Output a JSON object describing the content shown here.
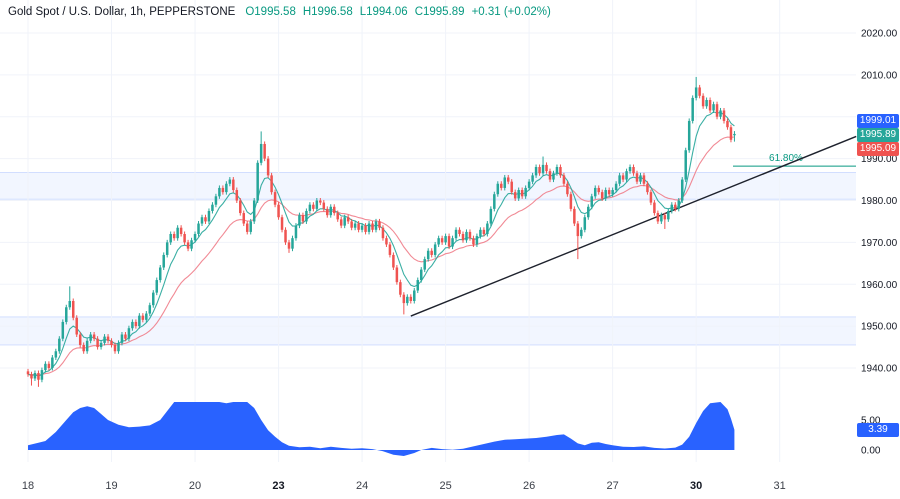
{
  "header": {
    "symbol_title": "Gold Spot / U.S. Dollar, 1h, PEPPERSTONE",
    "ohlc": {
      "o": "O1995.58",
      "h": "H1996.58",
      "l": "L1994.06",
      "c": "C1995.89",
      "change": "+0.31 (+0.02%)"
    }
  },
  "price_axis": {
    "labels": [
      "2020.00",
      "2010.00",
      "2000.00",
      "1990.00",
      "1980.00",
      "1970.00",
      "1960.00",
      "1950.00",
      "1940.00"
    ],
    "badges": [
      {
        "text": "1999.01",
        "price": 1999.01,
        "color": "#2962ff"
      },
      {
        "text": "1995.89",
        "price": 1995.89,
        "color": "#26a69a"
      },
      {
        "text": "1995.09",
        "price": 1995.09,
        "color": "#ef5350"
      }
    ]
  },
  "indicator_axis": {
    "labels": [
      {
        "text": "5.00",
        "value": 5
      },
      {
        "text": "0.00",
        "value": 0
      }
    ],
    "badge": {
      "text": "3.39",
      "value": 3.39,
      "color": "#2962ff"
    }
  },
  "colors": {
    "up": "#26a69a",
    "down": "#ef5350",
    "ma_fast": "#26a69a",
    "ma_slow": "#f07d8a",
    "indicator": "#2962ff",
    "grid": "#f0f3fa",
    "zone_fill": "rgba(41,98,255,0.06)",
    "zone_edge": "rgba(41,98,255,0.18)",
    "trend": "#1e222d",
    "fib": "#089981",
    "axis_text": "#131722"
  },
  "chart_data": {
    "type": "candlestick",
    "title": "Gold Spot / U.S. Dollar, 1h, PEPPERSTONE",
    "interval": "1h",
    "price_axis_range_labels": [
      1940,
      2020
    ],
    "last": {
      "open": 1995.58,
      "high": 1996.58,
      "low": 1994.06,
      "close": 1995.89,
      "change": 0.31,
      "change_pct": 0.02
    },
    "time_ticks": [
      {
        "label": "18",
        "i": 0,
        "bold": false
      },
      {
        "label": "19",
        "i": 24,
        "bold": false
      },
      {
        "label": "20",
        "i": 48,
        "bold": false
      },
      {
        "label": "23",
        "i": 72,
        "bold": true
      },
      {
        "label": "24",
        "i": 96,
        "bold": false
      },
      {
        "label": "25",
        "i": 120,
        "bold": false
      },
      {
        "label": "26",
        "i": 144,
        "bold": false
      },
      {
        "label": "27",
        "i": 168,
        "bold": false
      },
      {
        "label": "30",
        "i": 192,
        "bold": true
      },
      {
        "label": "31",
        "i": 216,
        "bold": false
      }
    ],
    "candles": {
      "first_open": 1939.2,
      "default_wick": 0.6,
      "closes": [
        1938.5,
        1937.5,
        1938.8,
        1937.2,
        1939.5,
        1941.0,
        1940.0,
        1942.5,
        1944.0,
        1947.0,
        1951.0,
        1954.5,
        1956.0,
        1952.0,
        1948.0,
        1945.5,
        1944.0,
        1946.5,
        1948.0,
        1947.0,
        1945.0,
        1946.0,
        1947.5,
        1946.5,
        1945.5,
        1944.0,
        1946.0,
        1948.0,
        1947.0,
        1949.5,
        1951.0,
        1950.0,
        1952.5,
        1951.5,
        1953.0,
        1955.0,
        1958.0,
        1961.0,
        1964.0,
        1967.0,
        1970.0,
        1972.0,
        1971.0,
        1973.5,
        1972.0,
        1970.0,
        1968.5,
        1970.5,
        1972.0,
        1974.5,
        1976.0,
        1975.0,
        1977.5,
        1979.0,
        1981.0,
        1983.0,
        1982.0,
        1984.0,
        1985.0,
        1982.5,
        1980.0,
        1977.0,
        1974.5,
        1972.5,
        1975.0,
        1980.0,
        1989.0,
        1993.5,
        1990.0,
        1986.0,
        1982.0,
        1979.0,
        1976.0,
        1973.0,
        1970.0,
        1968.5,
        1971.0,
        1974.0,
        1976.5,
        1975.0,
        1977.5,
        1979.0,
        1978.0,
        1980.0,
        1979.5,
        1978.0,
        1976.5,
        1978.5,
        1977.0,
        1975.5,
        1974.0,
        1976.0,
        1975.0,
        1973.5,
        1974.5,
        1973.0,
        1974.0,
        1972.5,
        1974.5,
        1973.0,
        1975.0,
        1973.5,
        1971.0,
        1969.5,
        1967.0,
        1964.0,
        1960.5,
        1957.5,
        1955.5,
        1957.0,
        1956.0,
        1958.5,
        1961.0,
        1963.5,
        1966.0,
        1968.0,
        1967.0,
        1969.5,
        1971.0,
        1970.0,
        1971.5,
        1969.0,
        1971.0,
        1973.0,
        1972.0,
        1970.5,
        1972.5,
        1971.0,
        1969.5,
        1971.5,
        1973.0,
        1972.0,
        1974.5,
        1978.0,
        1981.5,
        1984.0,
        1983.0,
        1985.5,
        1984.5,
        1982.0,
        1980.5,
        1982.5,
        1981.0,
        1983.0,
        1984.5,
        1986.0,
        1988.0,
        1986.5,
        1988.5,
        1987.0,
        1985.0,
        1986.5,
        1988.0,
        1986.0,
        1984.0,
        1981.5,
        1978.0,
        1974.5,
        1971.5,
        1973.0,
        1976.0,
        1978.5,
        1981.0,
        1983.0,
        1982.0,
        1980.5,
        1982.5,
        1981.5,
        1982.5,
        1984.0,
        1986.0,
        1985.0,
        1987.0,
        1988.0,
        1986.5,
        1984.5,
        1986.0,
        1984.0,
        1982.0,
        1979.5,
        1977.0,
        1975.0,
        1976.5,
        1975.5,
        1977.5,
        1979.0,
        1978.0,
        1980.0,
        1985.0,
        1992.0,
        1999.0,
        2004.5,
        2007.0,
        2005.0,
        2002.5,
        2004.0,
        2001.5,
        2003.0,
        2000.0,
        2001.5,
        1999.0,
        1997.5,
        1994.5,
        1995.89
      ],
      "open_overrides": {
        "203": 1995.58
      },
      "high_overrides": {
        "12": 1959.5,
        "67": 1996.5,
        "148": 1990.5,
        "192": 2009.5,
        "203": 1996.58
      },
      "low_overrides": {
        "1": 1935.8,
        "3": 1935.5,
        "75": 1967.5,
        "108": 1952.8,
        "158": 1966.0,
        "183": 1973.2,
        "203": 1994.06
      }
    },
    "ma_fast": {
      "period": 7
    },
    "ma_slow": {
      "period": 21
    },
    "zones": [
      {
        "top": 1986.7,
        "bottom": 1980.3
      },
      {
        "top": 1952.2,
        "bottom": 1945.5
      }
    ],
    "trendline": {
      "points": [
        {
          "i": 110,
          "price": 1952.4
        },
        {
          "i": 238,
          "price": 1995.3
        }
      ]
    },
    "fib": {
      "label": "61.80%",
      "price": 1988.2
    },
    "indicator": {
      "type": "area",
      "ymin": 0,
      "ymax": 5,
      "current": 3.39,
      "points": [
        [
          0,
          0.8
        ],
        [
          3,
          1.2
        ],
        [
          5,
          1.5
        ],
        [
          8,
          3.0
        ],
        [
          11,
          5.0
        ],
        [
          13,
          6.3
        ],
        [
          15,
          7.0
        ],
        [
          17,
          7.3
        ],
        [
          19,
          7.0
        ],
        [
          21,
          6.0
        ],
        [
          23,
          5.0
        ],
        [
          26,
          4.2
        ],
        [
          29,
          3.8
        ],
        [
          32,
          3.9
        ],
        [
          35,
          4.1
        ],
        [
          38,
          5.0
        ],
        [
          40,
          6.5
        ],
        [
          42,
          8.0
        ],
        [
          44,
          9.0
        ],
        [
          55,
          9.0
        ],
        [
          57,
          7.8
        ],
        [
          59,
          8.4
        ],
        [
          61,
          8.6
        ],
        [
          63,
          8.4
        ],
        [
          65,
          7.0
        ],
        [
          67,
          5.0
        ],
        [
          69,
          3.3
        ],
        [
          71,
          2.2
        ],
        [
          73,
          1.3
        ],
        [
          75,
          0.7
        ],
        [
          78,
          0.45
        ],
        [
          81,
          0.55
        ],
        [
          84,
          0.3
        ],
        [
          87,
          0.55
        ],
        [
          90,
          0.35
        ],
        [
          93,
          0.2
        ],
        [
          96,
          0.3
        ],
        [
          99,
          0.15
        ],
        [
          102,
          -0.2
        ],
        [
          105,
          -0.8
        ],
        [
          108,
          -1.0
        ],
        [
          111,
          -0.5
        ],
        [
          113,
          0.0
        ],
        [
          116,
          0.35
        ],
        [
          119,
          0.15
        ],
        [
          122,
          0.05
        ],
        [
          125,
          0.2
        ],
        [
          128,
          0.6
        ],
        [
          131,
          1.0
        ],
        [
          134,
          1.4
        ],
        [
          137,
          1.7
        ],
        [
          140,
          1.8
        ],
        [
          143,
          1.9
        ],
        [
          146,
          2.0
        ],
        [
          149,
          2.2
        ],
        [
          152,
          2.5
        ],
        [
          154,
          2.6
        ],
        [
          156,
          1.9
        ],
        [
          158,
          1.1
        ],
        [
          160,
          0.8
        ],
        [
          162,
          1.2
        ],
        [
          164,
          1.3
        ],
        [
          166,
          1.0
        ],
        [
          168,
          0.8
        ],
        [
          171,
          0.55
        ],
        [
          174,
          0.5
        ],
        [
          177,
          0.6
        ],
        [
          180,
          0.35
        ],
        [
          183,
          0.25
        ],
        [
          186,
          0.4
        ],
        [
          188,
          0.9
        ],
        [
          190,
          2.2
        ],
        [
          192,
          4.5
        ],
        [
          194,
          6.5
        ],
        [
          196,
          7.8
        ],
        [
          199,
          8.0
        ],
        [
          201,
          6.8
        ],
        [
          202,
          5.2
        ],
        [
          203,
          3.39
        ]
      ]
    }
  }
}
